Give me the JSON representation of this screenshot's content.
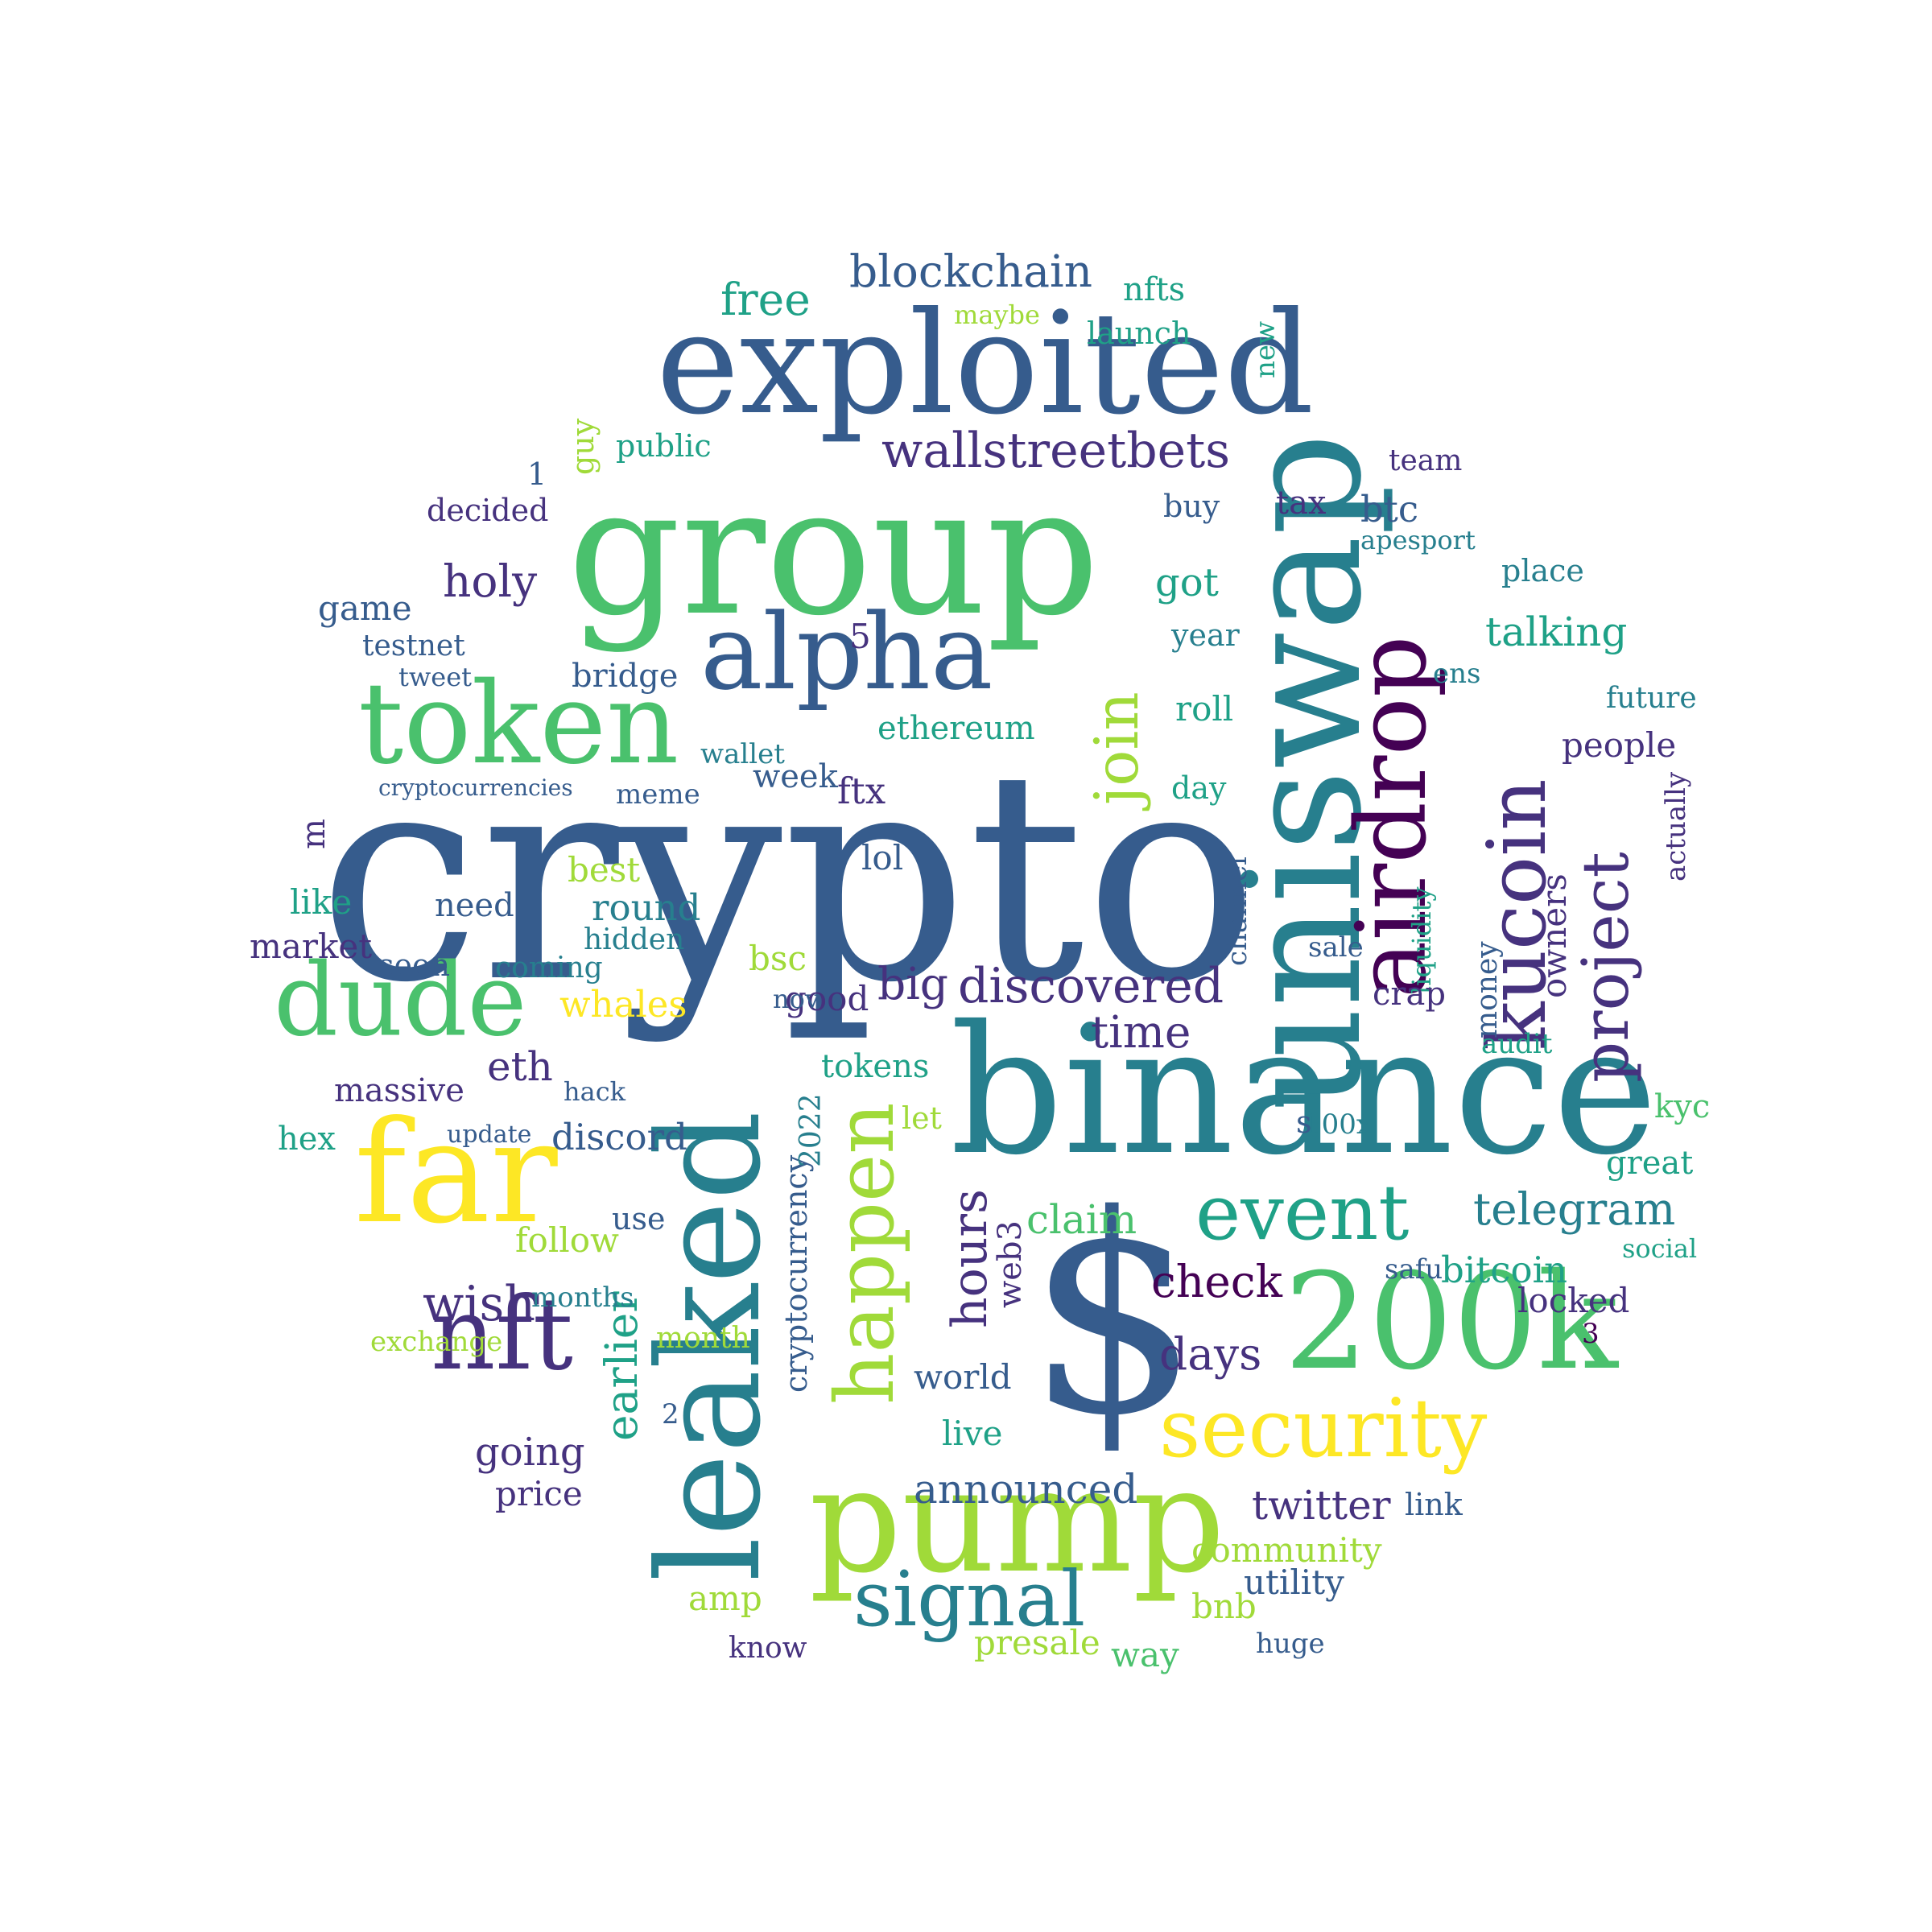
{
  "palette": {
    "c0": "#440154",
    "c1": "#46327e",
    "c2": "#365c8d",
    "c3": "#277f8e",
    "c4": "#1fa187",
    "c5": "#4ac16d",
    "c6": "#a0da39",
    "c7": "#fde725"
  },
  "words": [
    {
      "text": "crypto",
      "color": "c2"
    },
    {
      "text": "binance",
      "color": "c3"
    },
    {
      "text": "uniswap",
      "color": "c3"
    },
    {
      "text": "group",
      "color": "c5"
    },
    {
      "text": "exploited",
      "color": "c2"
    },
    {
      "text": "leaked",
      "color": "c3"
    },
    {
      "text": "pump",
      "color": "c6"
    },
    {
      "text": "$",
      "color": "c2"
    },
    {
      "text": "200k",
      "color": "c5"
    },
    {
      "text": "far",
      "color": "c7"
    },
    {
      "text": "token",
      "color": "c5"
    },
    {
      "text": "dude",
      "color": "c5"
    },
    {
      "text": "alpha",
      "color": "c2"
    },
    {
      "text": "airdrop",
      "color": "c0"
    },
    {
      "text": "kucoin",
      "color": "c1"
    },
    {
      "text": "project",
      "color": "c1"
    },
    {
      "text": "happen",
      "color": "c6"
    },
    {
      "text": "security",
      "color": "c7"
    },
    {
      "text": "signal",
      "color": "c3"
    },
    {
      "text": "nft",
      "color": "c1"
    },
    {
      "text": "event",
      "color": "c4"
    },
    {
      "text": "wallstreetbets",
      "color": "c1"
    },
    {
      "text": "blockchain",
      "color": "c2"
    },
    {
      "text": "join",
      "color": "c6"
    },
    {
      "text": "discovered",
      "color": "c1"
    },
    {
      "text": "telegram",
      "color": "c3"
    },
    {
      "text": "announced",
      "color": "c2"
    },
    {
      "text": "earlier",
      "color": "c4"
    },
    {
      "text": "hours",
      "color": "c1"
    },
    {
      "text": "cryptocurrency",
      "color": "c2"
    },
    {
      "text": "wish",
      "color": "c1"
    },
    {
      "text": "check",
      "color": "c0"
    },
    {
      "text": "holy",
      "color": "c1"
    },
    {
      "text": "claim",
      "color": "c5"
    },
    {
      "text": "days",
      "color": "c1"
    },
    {
      "text": "big",
      "color": "c1"
    },
    {
      "text": "time",
      "color": "c1"
    },
    {
      "text": "free",
      "color": "c4"
    },
    {
      "text": "talking",
      "color": "c4"
    },
    {
      "text": "eth",
      "color": "c1"
    },
    {
      "text": "twitter",
      "color": "c1"
    },
    {
      "text": "going",
      "color": "c1"
    },
    {
      "text": "owners",
      "color": "c1"
    },
    {
      "text": "bitcoin",
      "color": "c4"
    },
    {
      "text": "community",
      "color": "c6"
    },
    {
      "text": "discord",
      "color": "c2"
    },
    {
      "text": "whales",
      "color": "c7"
    },
    {
      "text": "round",
      "color": "c3"
    },
    {
      "text": "btc",
      "color": "c2"
    },
    {
      "text": "presale",
      "color": "c6"
    },
    {
      "text": "locked",
      "color": "c1"
    },
    {
      "text": "follow",
      "color": "c6"
    },
    {
      "text": "people",
      "color": "c1"
    },
    {
      "text": "game",
      "color": "c2"
    },
    {
      "text": "utility",
      "color": "c2"
    },
    {
      "text": "price",
      "color": "c1"
    },
    {
      "text": "world",
      "color": "c2"
    },
    {
      "text": "massive",
      "color": "c1"
    },
    {
      "text": "ethereum",
      "color": "c4"
    },
    {
      "text": "bnb",
      "color": "c6"
    },
    {
      "text": "live",
      "color": "c4"
    },
    {
      "text": "tokens",
      "color": "c4"
    },
    {
      "text": "market",
      "color": "c1"
    },
    {
      "text": "ftx",
      "color": "c1"
    },
    {
      "text": "web3",
      "color": "c1"
    },
    {
      "text": "good",
      "color": "c1"
    },
    {
      "text": "amp",
      "color": "c6"
    },
    {
      "text": "like",
      "color": "c4"
    },
    {
      "text": "roll",
      "color": "c4"
    },
    {
      "text": "week",
      "color": "c2"
    },
    {
      "text": "got",
      "color": "c4"
    },
    {
      "text": "launch",
      "color": "c4"
    },
    {
      "text": "nfts",
      "color": "c4"
    },
    {
      "text": "public",
      "color": "c4"
    },
    {
      "text": "decided",
      "color": "c1"
    },
    {
      "text": "testnet",
      "color": "c2"
    },
    {
      "text": "bridge",
      "color": "c2"
    },
    {
      "text": "best",
      "color": "c6"
    },
    {
      "text": "need",
      "color": "c2"
    },
    {
      "text": "hidden",
      "color": "c3"
    },
    {
      "text": "lol",
      "color": "c2"
    },
    {
      "text": "bsc",
      "color": "c6"
    },
    {
      "text": "coming",
      "color": "c3"
    },
    {
      "text": "money",
      "color": "c2"
    },
    {
      "text": "liquidity",
      "color": "c4"
    },
    {
      "text": "hex",
      "color": "c4"
    },
    {
      "text": "way",
      "color": "c5"
    },
    {
      "text": "link",
      "color": "c2"
    },
    {
      "text": "know",
      "color": "c1"
    },
    {
      "text": "crap",
      "color": "c1"
    },
    {
      "text": "channel",
      "color": "c2"
    },
    {
      "text": "kyc",
      "color": "c5"
    },
    {
      "text": "great",
      "color": "c4"
    },
    {
      "text": "tax",
      "color": "c1"
    },
    {
      "text": "team",
      "color": "c1"
    },
    {
      "text": "place",
      "color": "c3"
    },
    {
      "text": "maybe",
      "color": "c6"
    },
    {
      "text": "month",
      "color": "c6"
    },
    {
      "text": "months",
      "color": "c3"
    },
    {
      "text": "2022",
      "color": "c3"
    },
    {
      "text": "100x",
      "color": "c3"
    },
    {
      "text": "future",
      "color": "c3"
    },
    {
      "text": "actually",
      "color": "c1"
    },
    {
      "text": "new",
      "color": "c4"
    },
    {
      "text": "use",
      "color": "c2"
    },
    {
      "text": "exchange",
      "color": "c6"
    },
    {
      "text": "seen",
      "color": "c2"
    },
    {
      "text": "guy",
      "color": "c6"
    },
    {
      "text": "buy",
      "color": "c2"
    },
    {
      "text": "year",
      "color": "c3"
    },
    {
      "text": "day",
      "color": "c4"
    },
    {
      "text": "meme",
      "color": "c2"
    },
    {
      "text": "wallet",
      "color": "c3"
    },
    {
      "text": "cryptocurrencies",
      "color": "c2"
    },
    {
      "text": "tweet",
      "color": "c2"
    },
    {
      "text": "nov",
      "color": "c2"
    },
    {
      "text": "ens",
      "color": "c3"
    },
    {
      "text": "sale",
      "color": "c2"
    },
    {
      "text": "audit",
      "color": "c4"
    },
    {
      "text": "safu",
      "color": "c2"
    },
    {
      "text": "let",
      "color": "c6"
    },
    {
      "text": "hack",
      "color": "c2"
    },
    {
      "text": "update",
      "color": "c2"
    },
    {
      "text": "huge",
      "color": "c2"
    },
    {
      "text": "social",
      "color": "c4"
    },
    {
      "text": "apesport",
      "color": "c3"
    },
    {
      "text": "s",
      "color": "c2"
    },
    {
      "text": "2",
      "color": "c2"
    },
    {
      "text": "3",
      "color": "c0"
    },
    {
      "text": "5",
      "color": "c1"
    },
    {
      "text": "1",
      "color": "c2"
    },
    {
      "text": "m",
      "color": "c1"
    }
  ]
}
